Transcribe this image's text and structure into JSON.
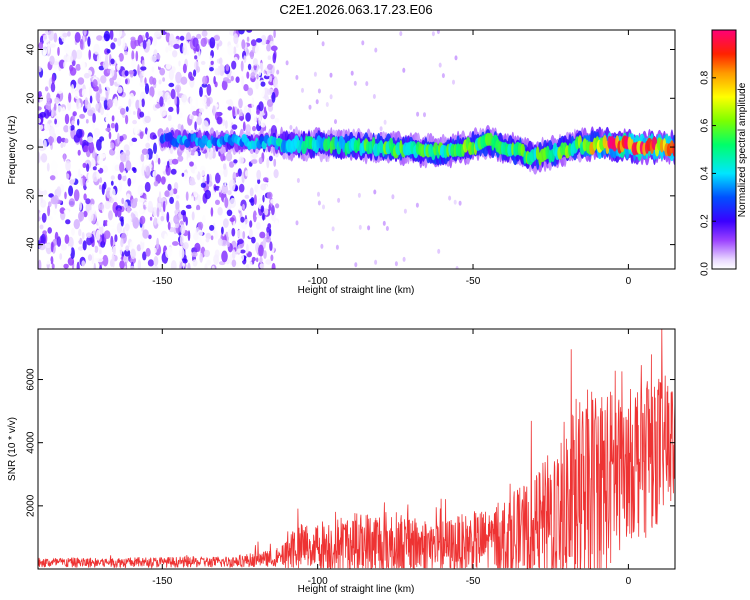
{
  "chart_data": [
    {
      "type": "heatmap",
      "title": "C2E1.2026.063.17.23.E06",
      "xlabel": "Height of straight line (km)",
      "ylabel": "Frequency (Hz)",
      "xlim": [
        -190,
        15
      ],
      "ylim": [
        -50,
        48
      ],
      "x_ticks": [
        "-150",
        "-100",
        "-50",
        "0"
      ],
      "y_ticks": [
        "-40",
        "-20",
        "0",
        "20",
        "40"
      ],
      "colorbar": {
        "label": "Normalized spectral amplitude",
        "range": [
          0,
          1
        ],
        "ticks": [
          "0.0",
          "0.2",
          "0.4",
          "0.6",
          "0.8"
        ]
      },
      "description_points": {
        "noise_region_x": [
          -190,
          -113
        ],
        "signal_trace": [
          {
            "x": -145,
            "freq": 3,
            "amp": 0.35
          },
          {
            "x": -120,
            "freq": 2,
            "amp": 0.4
          },
          {
            "x": -100,
            "freq": 1,
            "amp": 0.5
          },
          {
            "x": -80,
            "freq": 0,
            "amp": 0.55
          },
          {
            "x": -60,
            "freq": -2,
            "amp": 0.55
          },
          {
            "x": -45,
            "freq": 2,
            "amp": 0.6
          },
          {
            "x": -30,
            "freq": -4,
            "amp": 0.55
          },
          {
            "x": -15,
            "freq": 1,
            "amp": 0.6
          },
          {
            "x": -5,
            "freq": 1,
            "amp": 0.95
          },
          {
            "x": 5,
            "freq": 0,
            "amp": 0.95
          },
          {
            "x": 12,
            "freq": 0,
            "amp": 0.85
          }
        ]
      }
    },
    {
      "type": "line",
      "xlabel": "Height of straight line (km)",
      "ylabel": "SNR (10 * v/v)",
      "xlim": [
        -190,
        15
      ],
      "ylim": [
        0,
        7600
      ],
      "x_ticks": [
        "-150",
        "-100",
        "-50",
        "0"
      ],
      "y_ticks": [
        "2000",
        "4000",
        "6000"
      ],
      "color": "#ee3333",
      "envelope": [
        {
          "x": -190,
          "base": 200,
          "spread": 200
        },
        {
          "x": -130,
          "base": 220,
          "spread": 220
        },
        {
          "x": -112,
          "base": 350,
          "spread": 350
        },
        {
          "x": -108,
          "base": 700,
          "spread": 900
        },
        {
          "x": -80,
          "base": 800,
          "spread": 1400
        },
        {
          "x": -60,
          "base": 700,
          "spread": 1100
        },
        {
          "x": -45,
          "base": 900,
          "spread": 1300
        },
        {
          "x": -30,
          "base": 1300,
          "spread": 2000
        },
        {
          "x": -20,
          "base": 1800,
          "spread": 3800
        },
        {
          "x": -10,
          "base": 2500,
          "spread": 4500
        },
        {
          "x": -1,
          "base": 3200,
          "spread": 2800
        },
        {
          "x": 5,
          "base": 3800,
          "spread": 3600
        },
        {
          "x": 15,
          "base": 4000,
          "spread": 2400
        }
      ]
    }
  ]
}
